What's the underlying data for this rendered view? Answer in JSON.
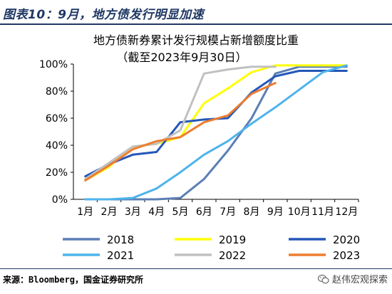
{
  "header": {
    "title": "图表10：9月，地方债发行明显加速"
  },
  "footer": {
    "source": "来源：Bloomberg，国金证券研究所",
    "watermark": "赵伟宏观探索",
    "watermark_icon": "wechat-icon"
  },
  "chart_data": {
    "type": "line",
    "title": "地方债新券累计发行规模占新增额度比重",
    "subtitle": "（截至2023年9月30日）",
    "xlabel": "",
    "ylabel": "",
    "categories": [
      "1月",
      "2月",
      "3月",
      "4月",
      "5月",
      "6月",
      "7月",
      "8月",
      "9月",
      "10月",
      "11月",
      "12月"
    ],
    "y_ticks": [
      "0%",
      "20%",
      "40%",
      "60%",
      "80%",
      "100%"
    ],
    "ylim": [
      0,
      100
    ],
    "grid": false,
    "legend_position": "bottom",
    "series": [
      {
        "name": "2018",
        "color": "#5b7fb5",
        "values": [
          0,
          0,
          0,
          0,
          1,
          15,
          36,
          60,
          93,
          98,
          98,
          98
        ]
      },
      {
        "name": "2019",
        "color": "#ffff00",
        "values": [
          14,
          24,
          39,
          41,
          46,
          71,
          82,
          94,
          99,
          99,
          99,
          99
        ]
      },
      {
        "name": "2020",
        "color": "#2457b8",
        "values": [
          17,
          26,
          33,
          35,
          57,
          59,
          60,
          79,
          91,
          95,
          95,
          95
        ]
      },
      {
        "name": "2021",
        "color": "#4db3ec",
        "values": [
          0,
          0,
          1,
          8,
          20,
          33,
          43,
          56,
          68,
          81,
          94,
          99
        ]
      },
      {
        "name": "2022",
        "color": "#c0c0c0",
        "values": [
          15,
          27,
          39,
          41,
          51,
          93,
          96,
          98,
          98,
          null,
          null,
          null
        ]
      },
      {
        "name": "2023",
        "color": "#ed7d31",
        "values": [
          14,
          25,
          37,
          43,
          46,
          57,
          62,
          78,
          86,
          null,
          null,
          null
        ]
      }
    ]
  }
}
